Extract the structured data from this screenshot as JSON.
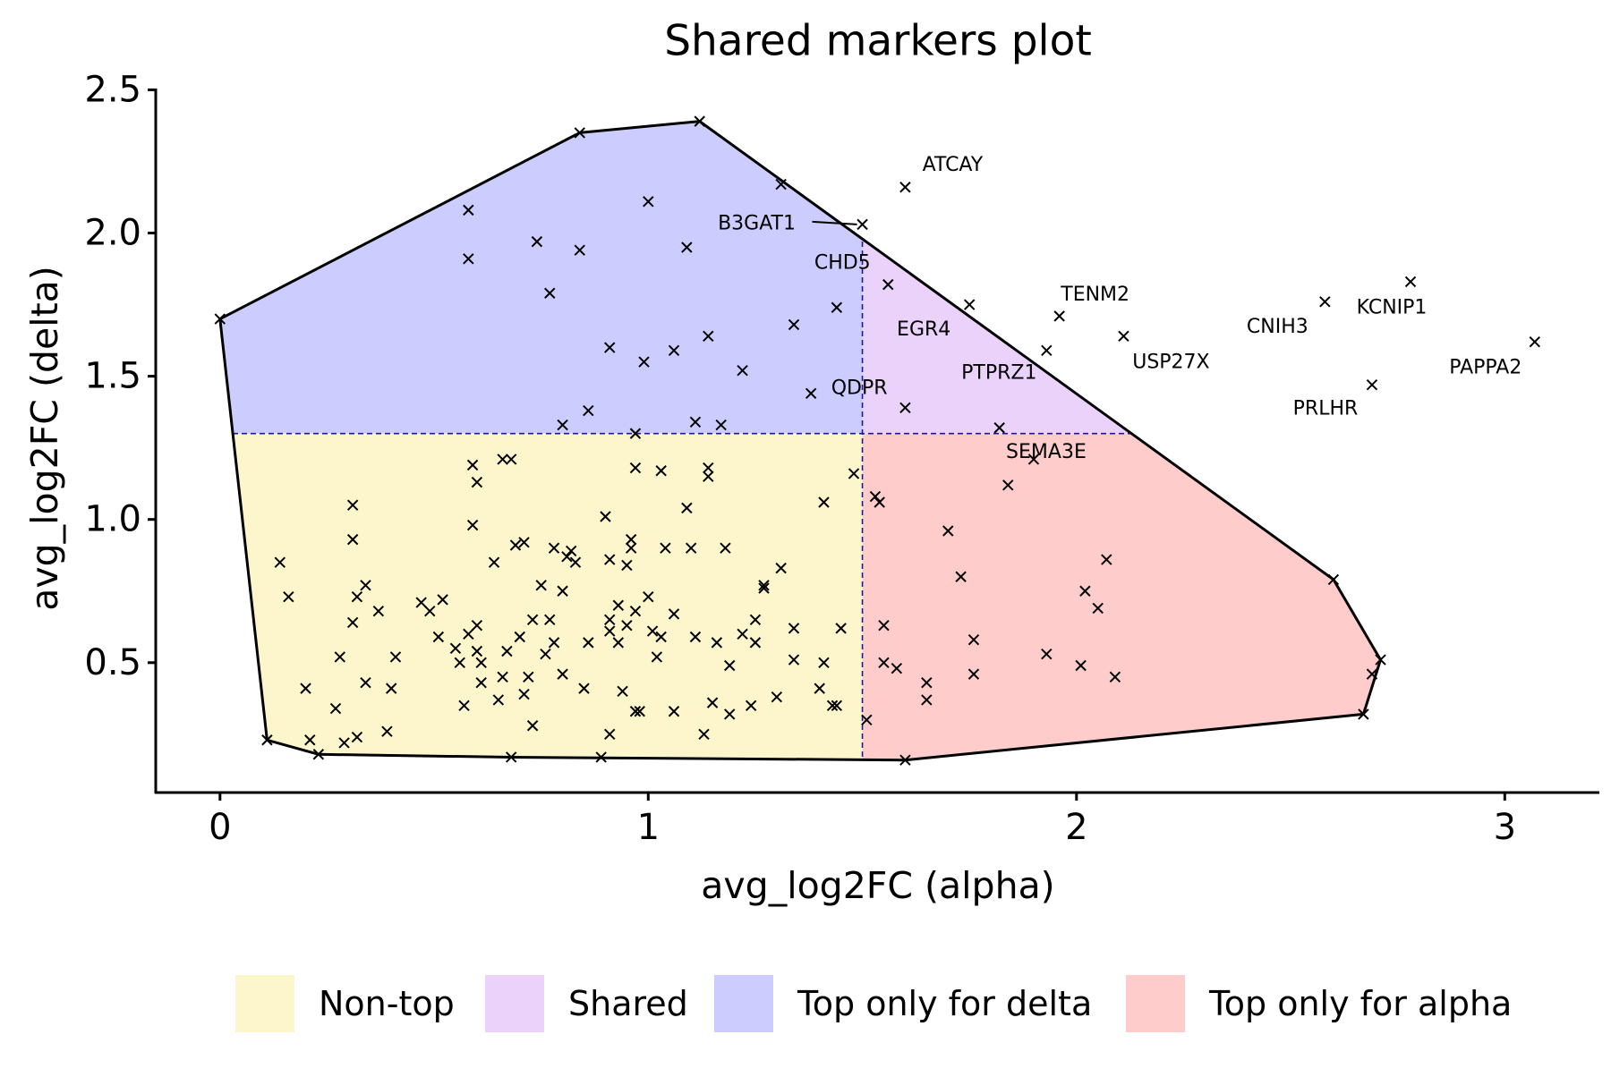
{
  "chart_data": {
    "type": "scatter",
    "title": "Shared markers plot",
    "xlabel": "avg_log2FC (alpha)",
    "ylabel": "avg_log2FC (delta)",
    "xlim": [
      -0.15,
      3.22
    ],
    "ylim": [
      0.12,
      2.5
    ],
    "x_ticks": [
      "0",
      "1",
      "2",
      "3"
    ],
    "y_ticks": [
      "0.5",
      "1.0",
      "1.5",
      "2.0",
      "2.5"
    ],
    "x_tick_values": [
      0,
      1,
      2,
      3
    ],
    "y_tick_values": [
      0.5,
      1.0,
      1.5,
      2.0,
      2.5
    ],
    "grid": false,
    "marker": "x",
    "thresholds": {
      "alpha": 1.5,
      "delta": 1.3
    },
    "legend": {
      "placement": "bottom",
      "items": [
        {
          "label": "Non-top",
          "color": "#FDF6CC"
        },
        {
          "label": "Shared",
          "color": "#EBD2FB"
        },
        {
          "label": "Top only for delta",
          "color": "#CCCCFF"
        },
        {
          "label": "Top only for alpha",
          "color": "#FFCCCC"
        }
      ]
    },
    "labeled_points": [
      {
        "gene": "ATCAY",
        "x": 1.6,
        "y": 2.16
      },
      {
        "gene": "B3GAT1",
        "x": 1.5,
        "y": 2.03
      },
      {
        "gene": "CHD5",
        "x": 1.56,
        "y": 1.82
      },
      {
        "gene": "EGR4",
        "x": 1.75,
        "y": 1.75
      },
      {
        "gene": "TENM2",
        "x": 1.96,
        "y": 1.71
      },
      {
        "gene": "CNIH3",
        "x": 2.58,
        "y": 1.76
      },
      {
        "gene": "KCNIP1",
        "x": 2.78,
        "y": 1.83
      },
      {
        "gene": "USP27X",
        "x": 2.11,
        "y": 1.64
      },
      {
        "gene": "PTPRZ1",
        "x": 1.93,
        "y": 1.59
      },
      {
        "gene": "QDPR",
        "x": 1.38,
        "y": 1.44
      },
      {
        "gene": "PRLHR",
        "x": 2.69,
        "y": 1.47
      },
      {
        "gene": "PAPPA2",
        "x": 3.07,
        "y": 1.62
      },
      {
        "gene": "SEMA3E",
        "x": 1.9,
        "y": 1.21
      }
    ],
    "points": [
      [
        0.0,
        1.7
      ],
      [
        0.84,
        2.35
      ],
      [
        1.12,
        2.39
      ],
      [
        0.58,
        2.08
      ],
      [
        0.58,
        1.91
      ],
      [
        0.74,
        1.97
      ],
      [
        0.77,
        1.79
      ],
      [
        0.84,
        1.94
      ],
      [
        1.0,
        2.11
      ],
      [
        1.09,
        1.95
      ],
      [
        1.31,
        2.17
      ],
      [
        1.44,
        1.74
      ],
      [
        1.34,
        1.68
      ],
      [
        1.14,
        1.64
      ],
      [
        1.06,
        1.59
      ],
      [
        0.99,
        1.55
      ],
      [
        0.91,
        1.6
      ],
      [
        1.22,
        1.52
      ],
      [
        1.6,
        1.39
      ],
      [
        0.86,
        1.38
      ],
      [
        0.8,
        1.33
      ],
      [
        1.11,
        1.34
      ],
      [
        1.17,
        1.33
      ],
      [
        1.82,
        1.32
      ],
      [
        1.84,
        1.12
      ],
      [
        1.53,
        1.08
      ],
      [
        1.54,
        1.06
      ],
      [
        1.48,
        1.16
      ],
      [
        1.41,
        1.06
      ],
      [
        1.7,
        0.96
      ],
      [
        1.73,
        0.8
      ],
      [
        2.07,
        0.86
      ],
      [
        2.02,
        0.75
      ],
      [
        2.05,
        0.69
      ],
      [
        2.6,
        0.79
      ],
      [
        1.76,
        0.58
      ],
      [
        1.76,
        0.46
      ],
      [
        1.93,
        0.53
      ],
      [
        2.01,
        0.49
      ],
      [
        2.09,
        0.45
      ],
      [
        1.55,
        0.63
      ],
      [
        1.55,
        0.5
      ],
      [
        1.58,
        0.48
      ],
      [
        1.65,
        0.43
      ],
      [
        1.65,
        0.37
      ],
      [
        1.51,
        0.3
      ],
      [
        1.6,
        0.16
      ],
      [
        2.67,
        0.32
      ],
      [
        2.71,
        0.51
      ],
      [
        2.69,
        0.46
      ],
      [
        0.11,
        0.23
      ],
      [
        0.14,
        0.85
      ],
      [
        0.16,
        0.73
      ],
      [
        0.2,
        0.41
      ],
      [
        0.21,
        0.23
      ],
      [
        0.23,
        0.18
      ],
      [
        0.27,
        0.34
      ],
      [
        0.28,
        0.52
      ],
      [
        0.29,
        0.22
      ],
      [
        0.31,
        1.05
      ],
      [
        0.31,
        0.93
      ],
      [
        0.31,
        0.64
      ],
      [
        0.32,
        0.24
      ],
      [
        0.32,
        0.73
      ],
      [
        0.34,
        0.77
      ],
      [
        0.34,
        0.43
      ],
      [
        0.37,
        0.68
      ],
      [
        0.39,
        0.26
      ],
      [
        0.4,
        0.41
      ],
      [
        0.41,
        0.52
      ],
      [
        0.47,
        0.71
      ],
      [
        0.49,
        0.68
      ],
      [
        0.52,
        0.72
      ],
      [
        0.51,
        0.59
      ],
      [
        0.55,
        0.55
      ],
      [
        0.56,
        0.5
      ],
      [
        0.57,
        0.35
      ],
      [
        0.59,
        1.19
      ],
      [
        0.59,
        0.98
      ],
      [
        0.6,
        1.13
      ],
      [
        0.6,
        0.63
      ],
      [
        0.58,
        0.6
      ],
      [
        0.6,
        0.54
      ],
      [
        0.61,
        0.5
      ],
      [
        0.61,
        0.43
      ],
      [
        0.64,
        0.85
      ],
      [
        0.65,
        0.37
      ],
      [
        0.66,
        0.45
      ],
      [
        0.66,
        1.21
      ],
      [
        0.68,
        1.21
      ],
      [
        0.67,
        0.54
      ],
      [
        0.68,
        0.17
      ],
      [
        0.69,
        0.91
      ],
      [
        0.71,
        0.92
      ],
      [
        0.7,
        0.59
      ],
      [
        0.71,
        0.39
      ],
      [
        0.73,
        0.65
      ],
      [
        0.72,
        0.45
      ],
      [
        0.73,
        0.28
      ],
      [
        0.75,
        0.77
      ],
      [
        0.76,
        0.53
      ],
      [
        0.77,
        0.65
      ],
      [
        0.78,
        0.57
      ],
      [
        0.78,
        0.9
      ],
      [
        0.8,
        0.75
      ],
      [
        0.8,
        0.46
      ],
      [
        0.81,
        0.87
      ],
      [
        0.82,
        0.89
      ],
      [
        0.83,
        0.85
      ],
      [
        0.85,
        0.41
      ],
      [
        0.86,
        0.57
      ],
      [
        0.89,
        0.17
      ],
      [
        0.9,
        1.01
      ],
      [
        0.91,
        0.86
      ],
      [
        0.91,
        0.65
      ],
      [
        0.91,
        0.61
      ],
      [
        0.91,
        0.25
      ],
      [
        0.93,
        0.57
      ],
      [
        0.94,
        0.4
      ],
      [
        0.93,
        0.7
      ],
      [
        0.95,
        0.84
      ],
      [
        0.95,
        0.63
      ],
      [
        0.96,
        0.93
      ],
      [
        0.96,
        0.9
      ],
      [
        0.97,
        1.3
      ],
      [
        0.97,
        1.18
      ],
      [
        0.97,
        0.68
      ],
      [
        0.97,
        0.33
      ],
      [
        0.98,
        0.33
      ],
      [
        1.0,
        0.73
      ],
      [
        1.01,
        0.61
      ],
      [
        1.02,
        0.52
      ],
      [
        1.03,
        1.17
      ],
      [
        1.03,
        0.59
      ],
      [
        1.04,
        0.9
      ],
      [
        1.06,
        0.67
      ],
      [
        1.06,
        0.33
      ],
      [
        1.09,
        1.04
      ],
      [
        1.1,
        0.9
      ],
      [
        1.11,
        0.59
      ],
      [
        1.14,
        1.18
      ],
      [
        1.14,
        1.15
      ],
      [
        1.13,
        0.25
      ],
      [
        1.15,
        0.36
      ],
      [
        1.16,
        0.57
      ],
      [
        1.18,
        0.9
      ],
      [
        1.19,
        0.49
      ],
      [
        1.19,
        0.32
      ],
      [
        1.22,
        0.6
      ],
      [
        1.24,
        0.35
      ],
      [
        1.25,
        0.57
      ],
      [
        1.25,
        0.65
      ],
      [
        1.27,
        0.77
      ],
      [
        1.27,
        0.76
      ],
      [
        1.3,
        0.38
      ],
      [
        1.31,
        0.83
      ],
      [
        1.34,
        0.62
      ],
      [
        1.34,
        0.51
      ],
      [
        1.4,
        0.41
      ],
      [
        1.41,
        0.5
      ],
      [
        1.43,
        0.35
      ],
      [
        1.44,
        0.35
      ],
      [
        1.45,
        0.62
      ]
    ]
  }
}
